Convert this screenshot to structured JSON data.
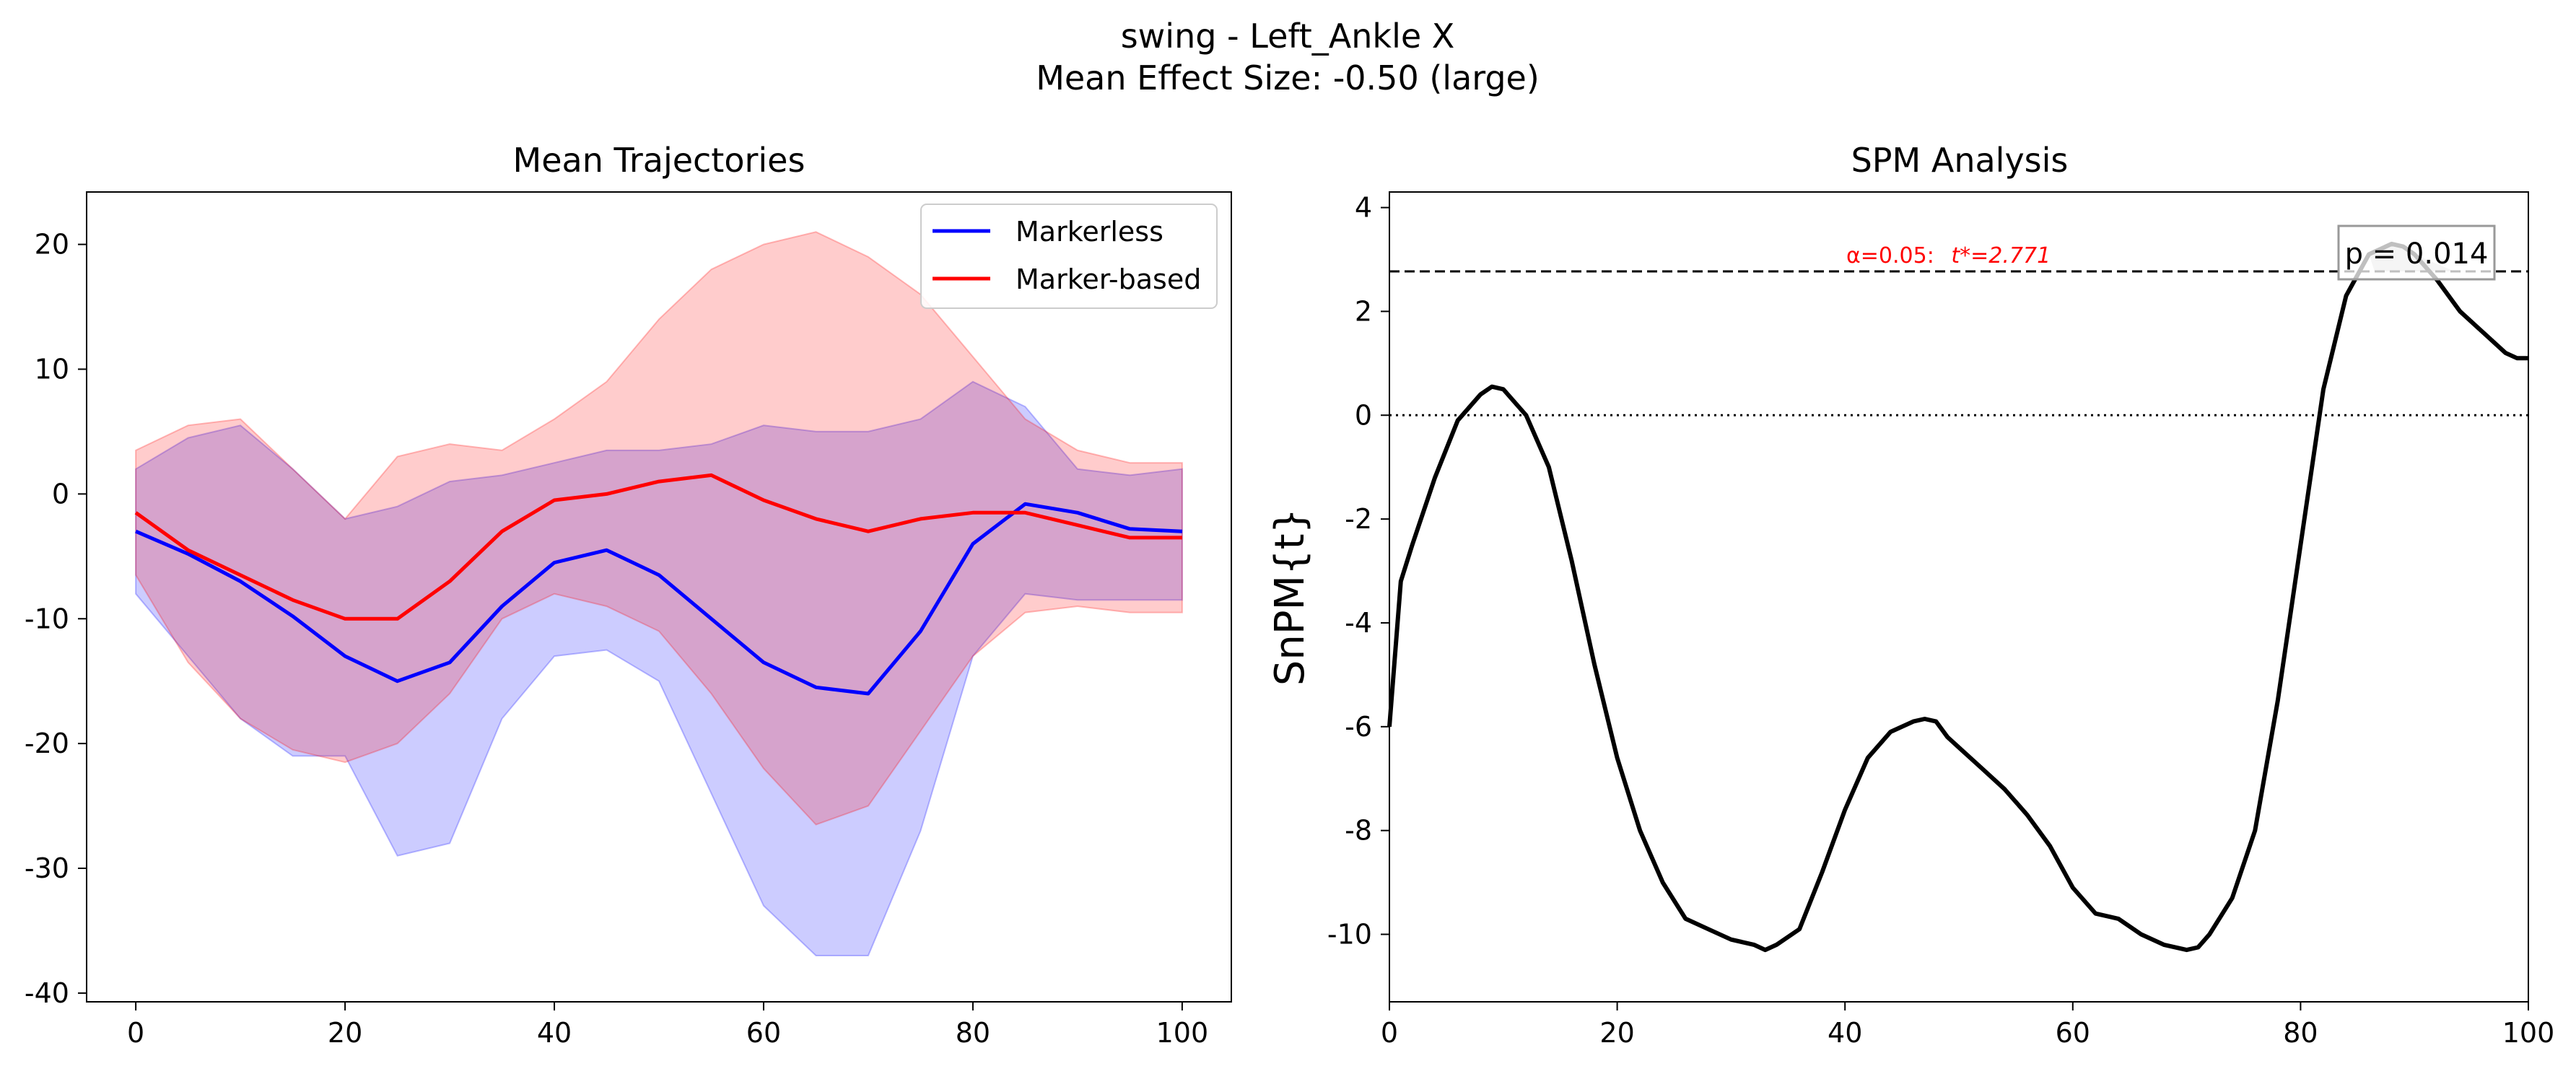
{
  "figure": {
    "title_line1": "swing - Left_Ankle X",
    "title_line2": "Mean Effect Size: -0.50 (large)"
  },
  "chart_data": [
    {
      "type": "line",
      "title": "Mean Trajectories",
      "xlabel": "",
      "ylabel": "",
      "xlim": [
        -4.7,
        104.7
      ],
      "ylim": [
        -40.7,
        24.2
      ],
      "xticks": [
        0,
        20,
        40,
        60,
        80,
        100
      ],
      "yticks": [
        20,
        10,
        0,
        -10,
        -20,
        -30,
        -40
      ],
      "grid": false,
      "legend": {
        "placement": "upper right",
        "entries": [
          "Markerless",
          "Marker-based"
        ]
      },
      "x": [
        0,
        5,
        10,
        15,
        20,
        25,
        30,
        35,
        40,
        45,
        50,
        55,
        60,
        65,
        70,
        75,
        80,
        85,
        90,
        95,
        100
      ],
      "series": [
        {
          "name": "Markerless",
          "color": "#0000ff",
          "band_color": "#0000ff",
          "values": [
            -3.0,
            -4.8,
            -7.0,
            -9.8,
            -13.0,
            -15.0,
            -13.5,
            -9.0,
            -5.5,
            -4.5,
            -6.5,
            -10.0,
            -13.5,
            -15.5,
            -16.0,
            -11.0,
            -4.0,
            -0.8,
            -1.5,
            -2.8,
            -3.0
          ],
          "upper": [
            2.0,
            4.5,
            5.5,
            2.0,
            -2.0,
            -1.0,
            1.0,
            1.5,
            2.5,
            3.5,
            3.5,
            4.0,
            5.5,
            5.0,
            5.0,
            6.0,
            9.0,
            7.0,
            2.0,
            1.5,
            2.0
          ],
          "lower": [
            -8.0,
            -13.0,
            -18.0,
            -21.0,
            -21.0,
            -29.0,
            -28.0,
            -18.0,
            -13.0,
            -12.5,
            -15.0,
            -24.0,
            -33.0,
            -37.0,
            -37.0,
            -27.0,
            -13.0,
            -8.0,
            -8.5,
            -8.5,
            -8.5
          ]
        },
        {
          "name": "Marker-based",
          "color": "#ff0000",
          "band_color": "#ff0000",
          "values": [
            -1.5,
            -4.5,
            -6.5,
            -8.5,
            -10.0,
            -10.0,
            -7.0,
            -3.0,
            -0.5,
            0.0,
            1.0,
            1.5,
            -0.5,
            -2.0,
            -3.0,
            -2.0,
            -1.5,
            -1.5,
            -2.5,
            -3.5,
            -3.5
          ],
          "upper": [
            3.5,
            5.5,
            6.0,
            2.0,
            -2.0,
            3.0,
            4.0,
            3.5,
            6.0,
            9.0,
            14.0,
            18.0,
            20.0,
            21.0,
            19.0,
            16.0,
            11.0,
            6.0,
            3.5,
            2.5,
            2.5
          ],
          "lower": [
            -6.5,
            -13.5,
            -18.0,
            -20.5,
            -21.5,
            -20.0,
            -16.0,
            -10.0,
            -8.0,
            -9.0,
            -11.0,
            -16.0,
            -22.0,
            -26.5,
            -25.0,
            -19.0,
            -13.0,
            -9.5,
            -9.0,
            -9.5,
            -9.5
          ]
        }
      ]
    },
    {
      "type": "line",
      "title": "SPM Analysis",
      "xlabel": "",
      "ylabel": "SnPM{t}",
      "xlim": [
        0,
        100
      ],
      "ylim": [
        -11.3,
        4.3
      ],
      "xticks": [
        0,
        20,
        40,
        60,
        80,
        100
      ],
      "yticks": [
        4,
        2,
        0,
        -2,
        -4,
        -6,
        -8,
        -10
      ],
      "ytick_labels": [
        "4",
        "2",
        "0",
        "-2",
        "-4",
        "-6",
        "-8",
        "-10"
      ],
      "grid": false,
      "threshold": {
        "value": 2.771,
        "label_alpha": "α=0.05:",
        "label_t": "t*=2.771",
        "label_color": "#ff0000"
      },
      "zero_line": 0,
      "cluster": {
        "p_label": "p = 0.014",
        "x_start": 86.5,
        "x_end": 93.5
      },
      "x": [
        0,
        1,
        2,
        4,
        6,
        8,
        9,
        10,
        12,
        14,
        16,
        18,
        20,
        22,
        24,
        26,
        28,
        30,
        32,
        33,
        34,
        36,
        38,
        40,
        42,
        44,
        46,
        47,
        48,
        49,
        50,
        52,
        54,
        56,
        58,
        60,
        62,
        64,
        66,
        68,
        70,
        71,
        72,
        74,
        76,
        78,
        80,
        82,
        84,
        86,
        88,
        89,
        90,
        92,
        94,
        96,
        98,
        99,
        100
      ],
      "series": [
        {
          "name": "",
          "color": "#000000",
          "values": [
            -6.0,
            -3.2,
            -2.5,
            -1.2,
            -0.1,
            0.4,
            0.55,
            0.5,
            0.0,
            -1.0,
            -2.8,
            -4.8,
            -6.6,
            -8.0,
            -9.0,
            -9.7,
            -9.9,
            -10.1,
            -10.2,
            -10.3,
            -10.2,
            -9.9,
            -8.8,
            -7.6,
            -6.6,
            -6.1,
            -5.9,
            -5.85,
            -5.9,
            -6.2,
            -6.4,
            -6.8,
            -7.2,
            -7.7,
            -8.3,
            -9.1,
            -9.6,
            -9.7,
            -10.0,
            -10.2,
            -10.3,
            -10.25,
            -10.0,
            -9.3,
            -8.0,
            -5.5,
            -2.5,
            0.5,
            2.3,
            3.1,
            3.3,
            3.25,
            3.1,
            2.6,
            2.0,
            1.6,
            1.2,
            1.1,
            1.1
          ]
        }
      ]
    }
  ]
}
